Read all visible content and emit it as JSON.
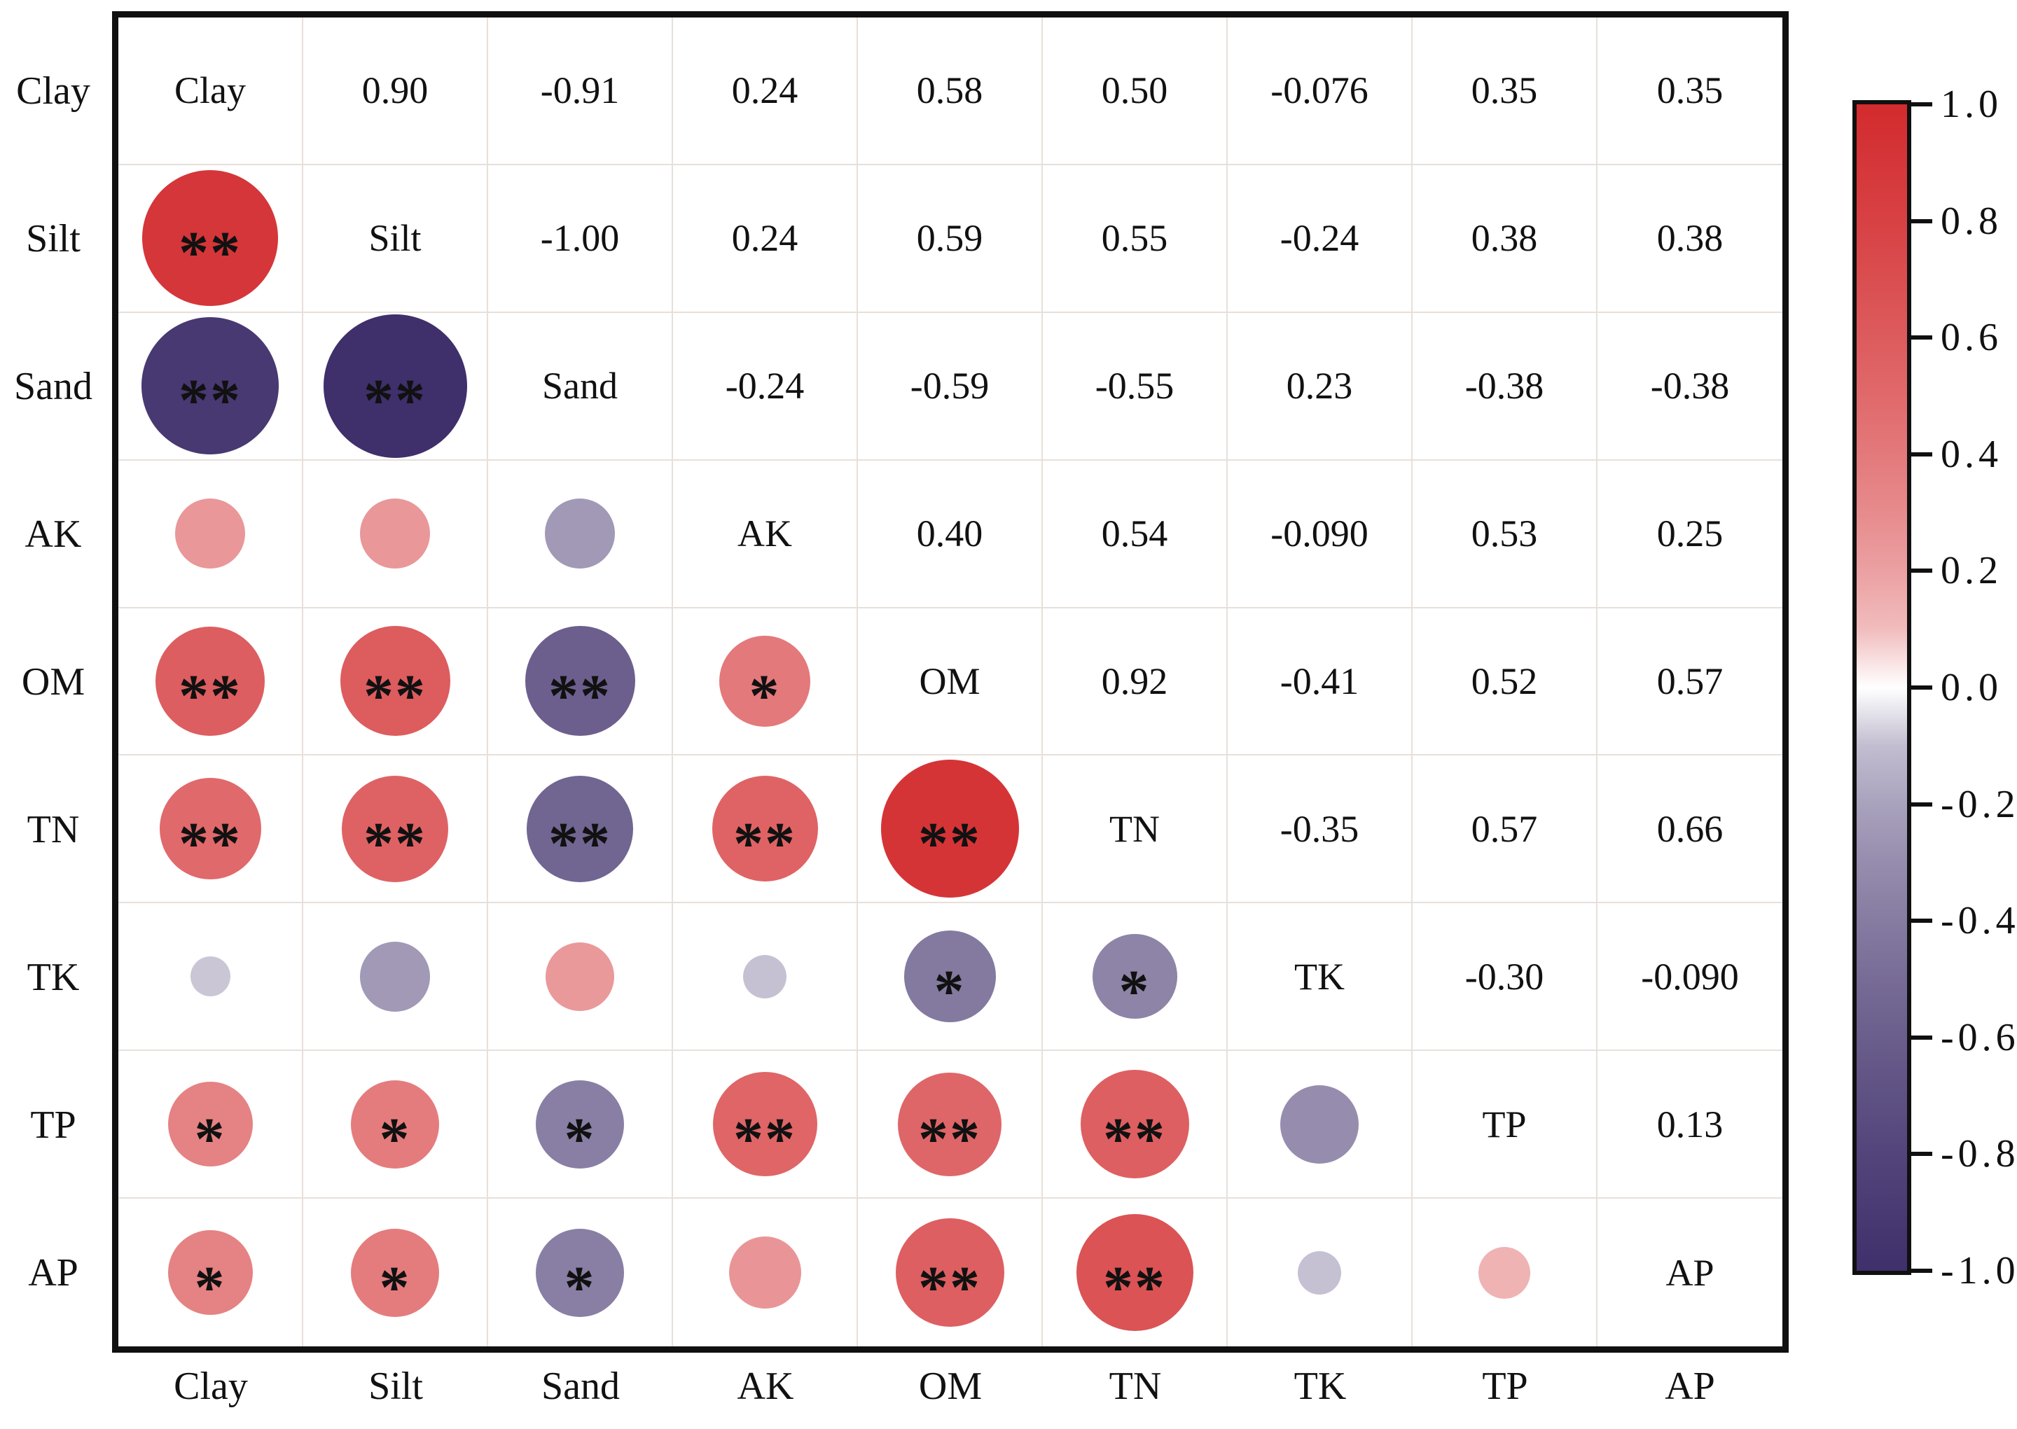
{
  "chart_data": {
    "type": "heatmap",
    "subtype": "correlation-matrix-corrplot",
    "title": "",
    "variables": [
      "Clay",
      "Silt",
      "Sand",
      "AK",
      "OM",
      "TN",
      "TK",
      "TP",
      "AP"
    ],
    "upper_text": [
      [
        "0.90",
        "-0.91",
        "0.24",
        "0.58",
        "0.50",
        "-0.076",
        "0.35",
        "0.35"
      ],
      [
        "-1.00",
        "0.24",
        "0.59",
        "0.55",
        "-0.24",
        "0.38",
        "0.38"
      ],
      [
        "-0.24",
        "-0.59",
        "-0.55",
        "0.23",
        "-0.38",
        "-0.38"
      ],
      [
        "0.40",
        "0.54",
        "-0.090",
        "0.53",
        "0.25"
      ],
      [
        "0.92",
        "-0.41",
        "0.52",
        "0.57"
      ],
      [
        "-0.35",
        "0.57",
        "0.66"
      ],
      [
        "-0.30",
        "-0.090"
      ],
      [
        "0.13"
      ],
      []
    ],
    "matrix": [
      [
        null,
        0.9,
        -0.91,
        0.24,
        0.58,
        0.5,
        -0.076,
        0.35,
        0.35
      ],
      [
        0.9,
        null,
        -1.0,
        0.24,
        0.59,
        0.55,
        -0.24,
        0.38,
        0.38
      ],
      [
        -0.91,
        -1.0,
        null,
        -0.24,
        -0.59,
        -0.55,
        0.23,
        -0.38,
        -0.38
      ],
      [
        0.24,
        0.24,
        -0.24,
        null,
        0.4,
        0.54,
        -0.09,
        0.53,
        0.25
      ],
      [
        0.58,
        0.59,
        -0.59,
        0.4,
        null,
        0.92,
        -0.41,
        0.52,
        0.57
      ],
      [
        0.5,
        0.55,
        -0.55,
        0.54,
        0.92,
        null,
        -0.35,
        0.57,
        0.66
      ],
      [
        -0.076,
        -0.24,
        0.23,
        -0.09,
        -0.41,
        -0.35,
        null,
        -0.3,
        -0.09
      ],
      [
        0.35,
        0.38,
        -0.38,
        0.53,
        0.52,
        0.57,
        -0.3,
        null,
        0.13
      ],
      [
        0.35,
        0.38,
        -0.38,
        0.25,
        0.57,
        0.66,
        -0.09,
        0.13,
        null
      ]
    ],
    "stars": [
      [],
      [
        "**"
      ],
      [
        "**",
        "**"
      ],
      [
        "",
        "",
        ""
      ],
      [
        "**",
        "**",
        "**",
        "*"
      ],
      [
        "**",
        "**",
        "**",
        "**",
        "**"
      ],
      [
        "",
        "",
        "",
        "",
        "*",
        "*"
      ],
      [
        "*",
        "*",
        "*",
        "**",
        "**",
        "**",
        ""
      ],
      [
        "*",
        "*",
        "*",
        "",
        "**",
        "**",
        "",
        ""
      ]
    ],
    "colorbar": {
      "max": 1.0,
      "min": -1.0,
      "ticks": [
        "1.0",
        "0.8",
        "0.6",
        "0.4",
        "0.2",
        "0.0",
        "-0.2",
        "-0.4",
        "-0.6",
        "-0.8",
        "-1.0"
      ]
    },
    "colors": {
      "positive_end": "#d32b2e",
      "negative_end": "#3f2f6b",
      "grid_line": "#e7e0da",
      "frame": "#101010",
      "star": "#111111",
      "text": "#111111"
    },
    "legend_position": "right",
    "grid": true
  }
}
